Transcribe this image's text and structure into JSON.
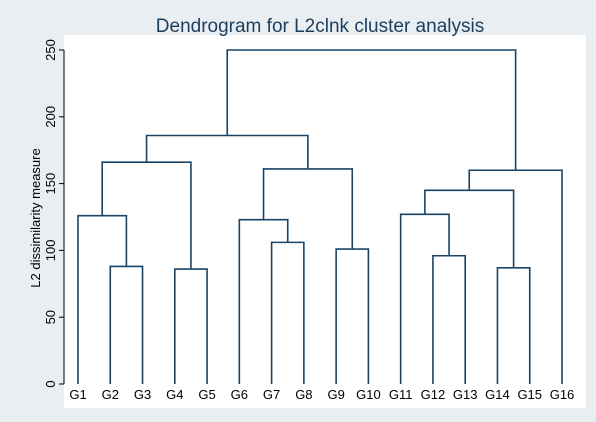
{
  "chart_data": {
    "type": "dendrogram",
    "title": "Dendrogram for L2clnk cluster analysis",
    "xlabel": "",
    "ylabel": "L2 dissimilarity measure",
    "ylim": [
      0,
      250
    ],
    "yticks": [
      0,
      50,
      100,
      150,
      200,
      250
    ],
    "grid": false,
    "leaves": [
      "G1",
      "G2",
      "G3",
      "G4",
      "G5",
      "G6",
      "G7",
      "G8",
      "G9",
      "G10",
      "G11",
      "G12",
      "G13",
      "G14",
      "G15",
      "G16"
    ],
    "merges": [
      {
        "left": "G2",
        "right": "G3",
        "height": 88
      },
      {
        "left": "G4",
        "right": "G5",
        "height": 86
      },
      {
        "left": "G1",
        "right": "G2+G3",
        "height": 126
      },
      {
        "left": "G1+G2+G3",
        "right": "G4+G5",
        "height": 166
      },
      {
        "left": "G7",
        "right": "G8",
        "height": 106
      },
      {
        "left": "G6",
        "right": "G7+G8",
        "height": 123
      },
      {
        "left": "G9",
        "right": "G10",
        "height": 101
      },
      {
        "left": "G6+G7+G8",
        "right": "G9+G10",
        "height": 161
      },
      {
        "left": "G1-G5",
        "right": "G6-G10",
        "height": 186
      },
      {
        "left": "G12",
        "right": "G13",
        "height": 96
      },
      {
        "left": "G11",
        "right": "G12+G13",
        "height": 127
      },
      {
        "left": "G14",
        "right": "G15",
        "height": 87
      },
      {
        "left": "G11+G12+G13",
        "right": "G14+G15",
        "height": 145
      },
      {
        "left": "G11-G15",
        "right": "G16",
        "height": 160
      },
      {
        "left": "G1-G10",
        "right": "G11-G16",
        "height": 250
      }
    ]
  },
  "colors": {
    "background": "#e9eef2",
    "plot_background": "#ffffff",
    "link": "#1a4466",
    "title": "#1c3f5e"
  }
}
